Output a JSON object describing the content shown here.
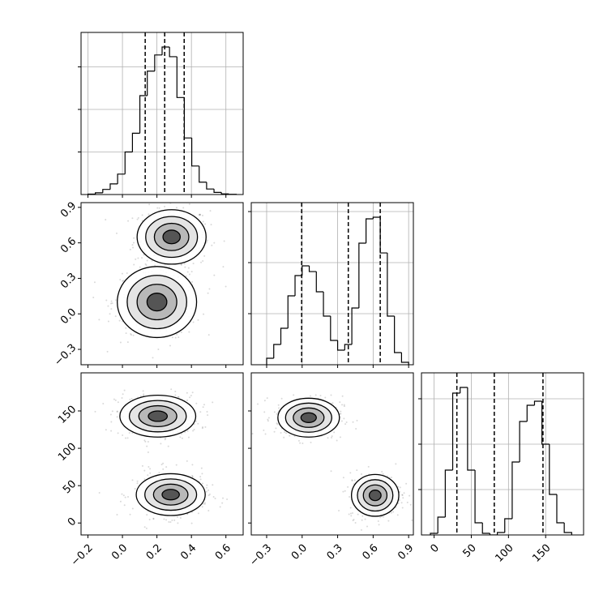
{
  "chart_data": [
    {
      "type": "histogram",
      "bins": [
        -0.2,
        -0.157,
        -0.114,
        -0.071,
        -0.028,
        0.015,
        0.058,
        0.101,
        0.144,
        0.187,
        0.23,
        0.273,
        0.316,
        0.359,
        0.402,
        0.445,
        0.488,
        0.531,
        0.574,
        0.617,
        0.66
      ],
      "counts": [
        10,
        40,
        120,
        250,
        480,
        1000,
        1440,
        2324,
        2900,
        3280,
        3467,
        3240,
        2280,
        1330,
        670,
        290,
        130,
        50,
        15,
        5
      ],
      "quantiles": [
        0.132,
        0.245,
        0.358
      ],
      "xlim": [
        -0.24,
        0.7
      ],
      "xticks": [
        -0.2,
        0,
        0.2,
        0.4,
        0.6
      ],
      "ylim": [
        0,
        3810
      ],
      "yticks": [
        1000,
        2000,
        3000
      ],
      "grid": true,
      "color": "#000000"
    },
    {
      "type": "scatter",
      "clusters": [
        {
          "x": 0.285,
          "y": 0.65,
          "sx": 0.1,
          "sy": 0.115
        },
        {
          "x": 0.2,
          "y": 0.1,
          "sx": 0.115,
          "sy": 0.15
        }
      ],
      "xlim": [
        -0.24,
        0.7
      ],
      "xticks": [
        -0.2,
        0,
        0.2,
        0.4,
        0.6
      ],
      "ylim": [
        -0.43,
        0.94
      ],
      "yticks": [
        {
          "value": -0.3,
          "label": "−0.3"
        },
        {
          "value": 0,
          "label": "0.0"
        },
        {
          "value": 0.3,
          "label": "0.3"
        },
        {
          "value": 0.6,
          "label": "0.6"
        },
        {
          "value": 0.9,
          "label": "0.9"
        }
      ],
      "color": "#000000"
    },
    {
      "type": "histogram",
      "bins": [
        -0.3,
        -0.24,
        -0.18,
        -0.12,
        -0.06,
        0,
        0.06,
        0.12,
        0.18,
        0.24,
        0.3,
        0.36,
        0.42,
        0.48,
        0.54,
        0.6,
        0.66,
        0.72,
        0.78,
        0.84,
        0.9
      ],
      "counts": [
        127,
        397,
        714,
        1349,
        1746,
        1937,
        1825,
        1429,
        952,
        476,
        286,
        397,
        1111,
        2381,
        2857,
        2889,
        2190,
        952,
        238,
        48
      ],
      "quantiles": [
        -0.004,
        0.39,
        0.66
      ],
      "xlim": [
        -0.43,
        0.94
      ],
      "xticks": [
        -0.3,
        0,
        0.3,
        0.6,
        0.9
      ],
      "ylim": [
        0,
        3175
      ],
      "yticks": [
        1000,
        2000,
        3000
      ],
      "grid": true,
      "color": "#000000"
    },
    {
      "type": "scatter",
      "clusters": [
        {
          "x": 0.205,
          "y": 143,
          "sx": 0.11,
          "sy": 14
        },
        {
          "x": 0.28,
          "y": 38,
          "sx": 0.1,
          "sy": 14
        }
      ],
      "xlim": [
        -0.24,
        0.7
      ],
      "xticks": [
        {
          "value": -0.2,
          "label": "−0.2"
        },
        {
          "value": 0,
          "label": "0.0"
        },
        {
          "value": 0.2,
          "label": "0.2"
        },
        {
          "value": 0.4,
          "label": "0.4"
        },
        {
          "value": 0.6,
          "label": "0.6"
        }
      ],
      "ylim": [
        -16,
        201
      ],
      "yticks": [
        0,
        50,
        100,
        150
      ],
      "color": "#000000"
    },
    {
      "type": "scatter",
      "clusters": [
        {
          "x": 0.055,
          "y": 141,
          "sx": 0.13,
          "sy": 13
        },
        {
          "x": 0.617,
          "y": 37,
          "sx": 0.1,
          "sy": 14
        }
      ],
      "xlim": [
        -0.43,
        0.94
      ],
      "xticks": [
        {
          "value": -0.3,
          "label": "−0.3"
        },
        {
          "value": 0,
          "label": "0.0"
        },
        {
          "value": 0.3,
          "label": "0.3"
        },
        {
          "value": 0.6,
          "label": "0.6"
        },
        {
          "value": 0.9,
          "label": "0.9"
        }
      ],
      "ylim": [
        -16,
        201
      ],
      "yticks": [
        0,
        50,
        100,
        150
      ],
      "color": "#000000"
    },
    {
      "type": "histogram",
      "bins": [
        -5,
        5,
        15,
        25,
        35,
        45,
        55,
        65,
        75,
        85,
        95,
        105,
        115,
        125,
        135,
        145,
        155,
        165,
        175,
        185
      ],
      "counts": [
        36,
        393,
        1429,
        3125,
        3250,
        1429,
        268,
        36,
        0,
        54,
        357,
        1607,
        2500,
        2857,
        2946,
        2000,
        893,
        268,
        54
      ],
      "quantiles": [
        30.6,
        80.9,
        146.4
      ],
      "xlim": [
        -17,
        201
      ],
      "xticks": [
        0,
        50,
        100,
        150
      ],
      "ylim": [
        0,
        3571
      ],
      "yticks": [
        1000,
        2000,
        3000
      ],
      "grid": true,
      "color": "#000000"
    }
  ]
}
